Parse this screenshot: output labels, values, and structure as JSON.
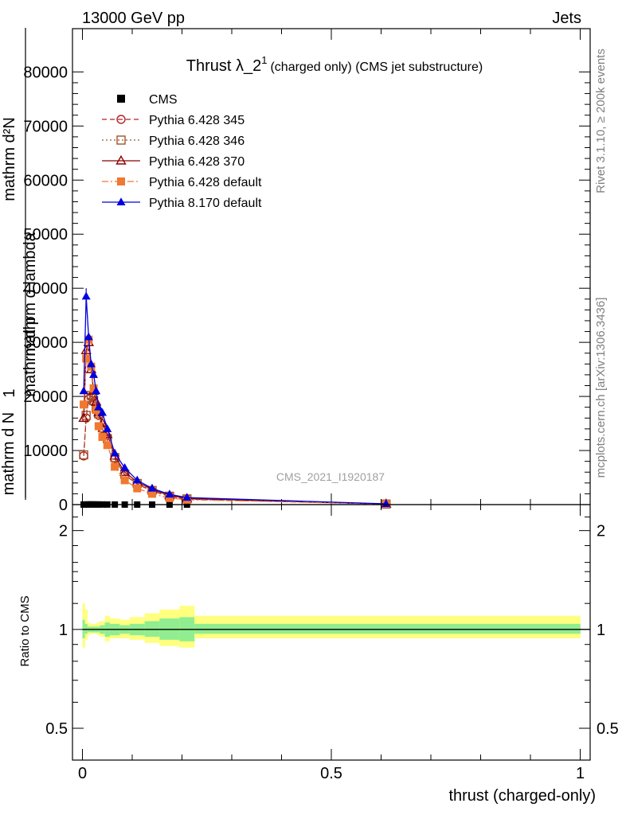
{
  "header": {
    "left": "13000 GeV pp",
    "right": "Jets"
  },
  "side": {
    "rivet": "Rivet 3.1.10, ≥ 200k events",
    "mcplots": "mcplots.cern.ch [arXiv:1306.3436]"
  },
  "chart_data": [
    {
      "type": "line",
      "title_main": "Thrust λ_2",
      "title_sup": "1",
      "title_rest": "(charged only) (CMS jet substructure)",
      "watermark": "CMS_2021_I1920187",
      "ylabel_lines": [
        "mathrm d²N",
        "mathrm d p",
        "mathrm d lambda"
      ],
      "ylabel_fraction": {
        "num": "1",
        "den": "mathrm d N"
      },
      "xlim": [
        -0.02,
        1.02
      ],
      "ylim": [
        0,
        88000
      ],
      "yticks": [
        0,
        10000,
        20000,
        30000,
        40000,
        50000,
        60000,
        70000,
        80000
      ],
      "ytick_labels": [
        "0",
        "10000",
        "20000",
        "30000",
        "40000",
        "50000",
        "60000",
        "70000",
        "80000"
      ],
      "legend": "top-left",
      "series": [
        {
          "name": "CMS",
          "color": "#000000",
          "marker": "square-filled",
          "x": [
            0.0025,
            0.0075,
            0.0125,
            0.0175,
            0.0225,
            0.0275,
            0.0325,
            0.04,
            0.05,
            0.065,
            0.085,
            0.11,
            0.14,
            0.175,
            0.21,
            0.61
          ],
          "y": [
            10,
            20,
            30,
            30,
            30,
            20,
            20,
            20,
            15,
            10,
            8,
            5,
            3,
            2,
            1,
            0
          ]
        },
        {
          "name": "Pythia 6.428 345",
          "color": "#b22222",
          "marker": "circle-open",
          "line": "dashed",
          "x": [
            0.0025,
            0.0075,
            0.0125,
            0.0175,
            0.0225,
            0.0275,
            0.0325,
            0.04,
            0.05,
            0.065,
            0.085,
            0.11,
            0.14,
            0.175,
            0.21,
            0.61
          ],
          "y": [
            9000,
            16000,
            19500,
            20000,
            19000,
            17500,
            16500,
            14000,
            12000,
            8500,
            5500,
            3800,
            2500,
            1500,
            1000,
            100
          ]
        },
        {
          "name": "Pythia 6.428 346",
          "color": "#a0522d",
          "marker": "square-open",
          "line": "dotted",
          "x": [
            0.0025,
            0.0075,
            0.0125,
            0.0175,
            0.0225,
            0.0275,
            0.0325,
            0.04,
            0.05,
            0.065,
            0.085,
            0.11,
            0.14,
            0.175,
            0.21,
            0.61
          ],
          "y": [
            9200,
            16500,
            19800,
            20200,
            19200,
            17800,
            16800,
            14200,
            12200,
            8700,
            5600,
            3900,
            2600,
            1550,
            1050,
            100
          ]
        },
        {
          "name": "Pythia 6.428 370",
          "color": "#8b0000",
          "marker": "triangle-open",
          "line": "solid",
          "x": [
            0.0025,
            0.0075,
            0.0125,
            0.0175,
            0.0225,
            0.0275,
            0.0325,
            0.04,
            0.05,
            0.065,
            0.085,
            0.11,
            0.14,
            0.175,
            0.21,
            0.61
          ],
          "y": [
            16000,
            28500,
            30000,
            25000,
            21000,
            19000,
            17000,
            15000,
            13000,
            9000,
            6000,
            4200,
            2800,
            1700,
            1100,
            100
          ]
        },
        {
          "name": "Pythia 6.428 default",
          "color": "#f07830",
          "marker": "square-filled",
          "line": "dashdot",
          "x": [
            0.0025,
            0.0075,
            0.0125,
            0.0175,
            0.0225,
            0.0275,
            0.0325,
            0.04,
            0.05,
            0.065,
            0.085,
            0.11,
            0.14,
            0.175,
            0.21,
            0.61
          ],
          "y": [
            18500,
            27000,
            30500,
            25500,
            21500,
            17500,
            14500,
            12500,
            11000,
            7000,
            4500,
            3000,
            2000,
            1200,
            900,
            100
          ]
        },
        {
          "name": "Pythia 8.170 default",
          "color": "#0000dd",
          "marker": "triangle-filled",
          "line": "solid",
          "x": [
            0.0025,
            0.0075,
            0.0125,
            0.0175,
            0.0225,
            0.0275,
            0.0325,
            0.04,
            0.05,
            0.065,
            0.085,
            0.11,
            0.14,
            0.175,
            0.21,
            0.61
          ],
          "y": [
            21000,
            38500,
            31000,
            26000,
            24000,
            21000,
            18000,
            17000,
            14000,
            9500,
            6800,
            4500,
            3000,
            1900,
            1300,
            150
          ]
        }
      ]
    },
    {
      "type": "area",
      "ylabel": "Ratio to CMS",
      "xlabel": "thrust (charged-only)",
      "xlim": [
        -0.02,
        1.02
      ],
      "ylim": [
        0.4,
        2.4
      ],
      "log_y": true,
      "yticks": [
        0.5,
        1,
        2
      ],
      "ytick_labels": [
        "0.5",
        "1",
        "2"
      ],
      "xticks": [
        0,
        0.5,
        1
      ],
      "xtick_labels": [
        "0",
        "0.5",
        "1"
      ],
      "band_colors": {
        "stat": "#90ee90",
        "total": "#ffff80"
      },
      "bins": [
        0,
        0.005,
        0.01,
        0.015,
        0.02,
        0.025,
        0.03,
        0.035,
        0.045,
        0.055,
        0.075,
        0.095,
        0.125,
        0.155,
        0.195,
        0.225,
        1.0
      ],
      "band_total_up": [
        1.2,
        1.15,
        1.05,
        1.04,
        1.04,
        1.04,
        1.05,
        1.06,
        1.1,
        1.08,
        1.07,
        1.09,
        1.12,
        1.15,
        1.18,
        1.1
      ],
      "band_total_down": [
        0.88,
        0.93,
        0.96,
        0.97,
        0.97,
        0.97,
        0.96,
        0.95,
        0.92,
        0.94,
        0.94,
        0.93,
        0.91,
        0.89,
        0.88,
        0.94
      ],
      "band_stat_up": [
        1.07,
        1.04,
        1.02,
        1.02,
        1.02,
        1.02,
        1.02,
        1.03,
        1.05,
        1.04,
        1.03,
        1.04,
        1.06,
        1.08,
        1.09,
        1.04
      ],
      "band_stat_down": [
        0.94,
        0.97,
        0.98,
        0.98,
        0.98,
        0.98,
        0.98,
        0.97,
        0.95,
        0.96,
        0.97,
        0.96,
        0.95,
        0.93,
        0.92,
        0.97
      ],
      "reference": 1
    }
  ]
}
